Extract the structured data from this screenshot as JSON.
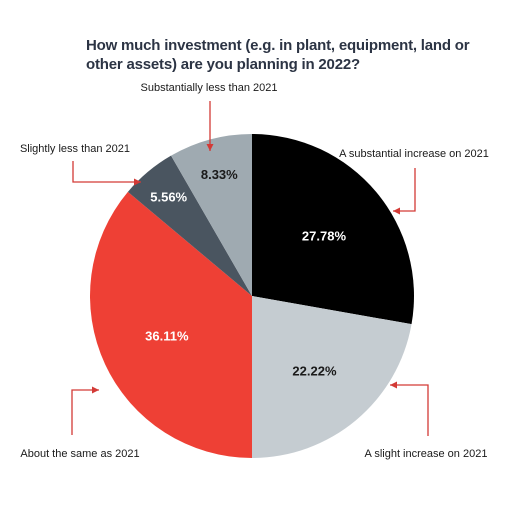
{
  "chart_data": {
    "type": "pie",
    "title": "How much investment (e.g. in plant, equipment, land or other assets) are you planning in 2022?",
    "slices": [
      {
        "label": "A substantial increase on 2021",
        "value": 27.78,
        "value_label": "27.78%",
        "color": "#000000",
        "text_color": "#ffffff"
      },
      {
        "label": "A slight increase on 2021",
        "value": 22.22,
        "value_label": "22.22%",
        "color": "#c5ccd1",
        "text_color": "#1a1a1a"
      },
      {
        "label": "About the same as 2021",
        "value": 36.11,
        "value_label": "36.11%",
        "color": "#ee4035",
        "text_color": "#ffffff"
      },
      {
        "label": "Slightly less than 2021",
        "value": 5.56,
        "value_label": "5.56%",
        "color": "#4a5560",
        "text_color": "#ffffff"
      },
      {
        "label": "Substantially less than 2021",
        "value": 8.33,
        "value_label": "8.33%",
        "color": "#9faab1",
        "text_color": "#1a1a1a"
      }
    ],
    "start_angle_deg": 0,
    "direction": "clockwise",
    "callout_color": "#d33a36"
  }
}
